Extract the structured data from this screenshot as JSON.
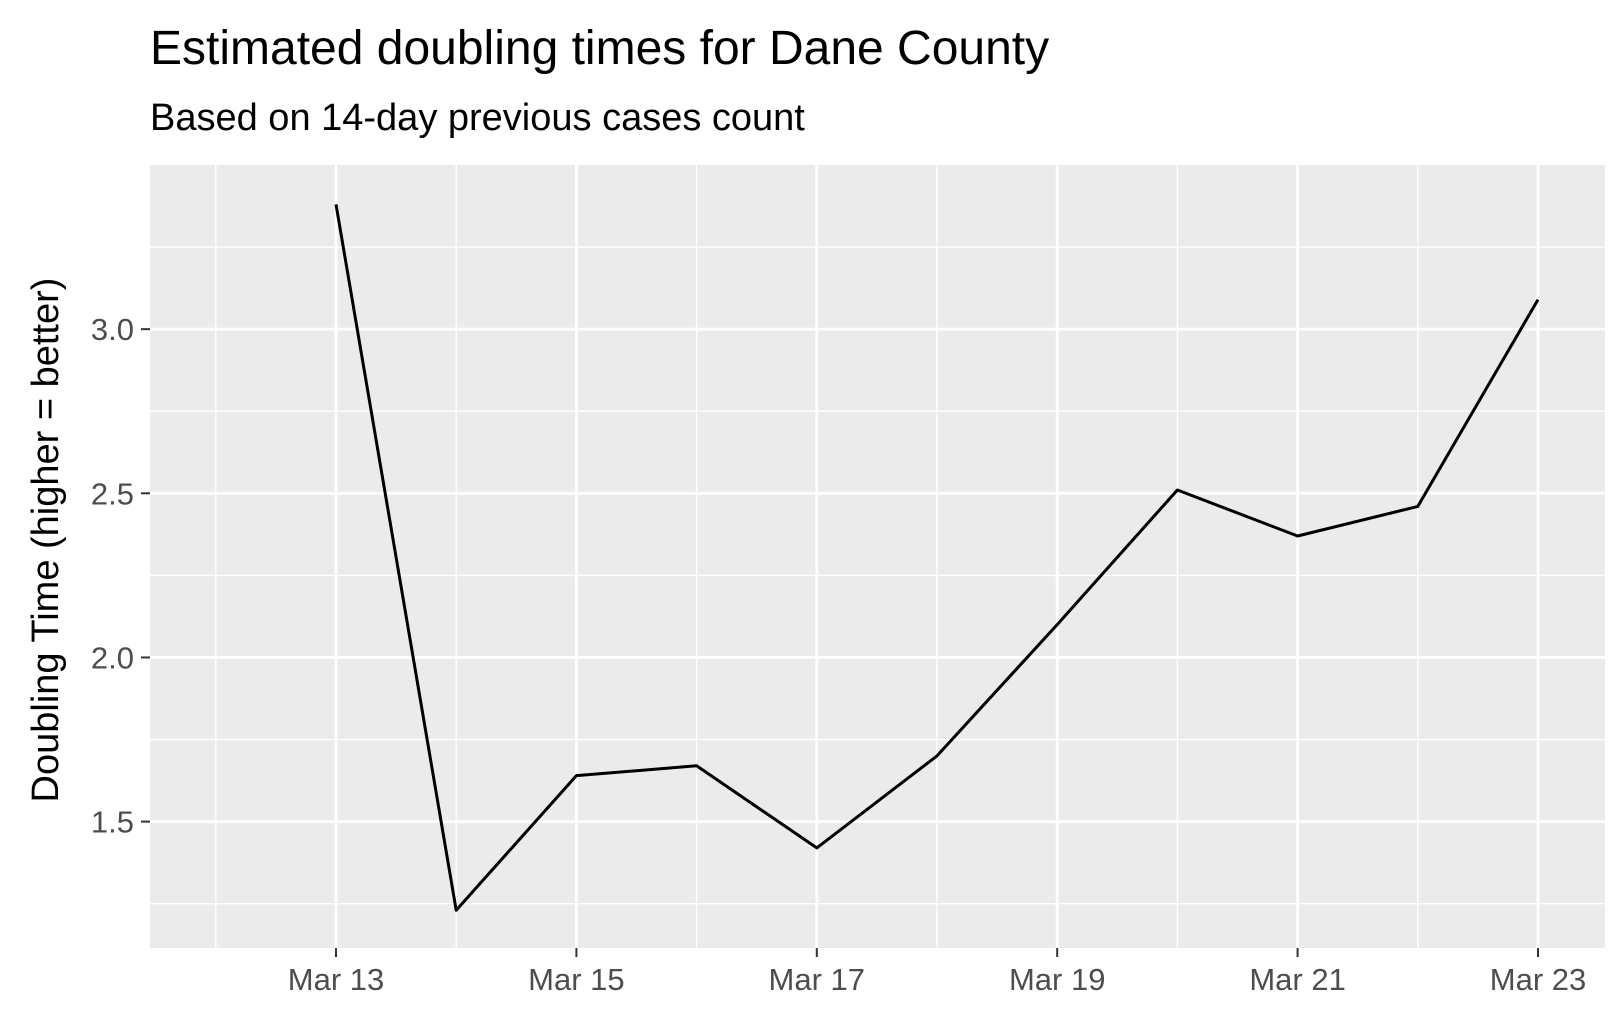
{
  "chart_data": {
    "type": "line",
    "title": "Estimated doubling times for Dane County",
    "subtitle": "Based on 14-day previous cases count",
    "xlabel": "",
    "ylabel": "Doubling Time (higher = better)",
    "x": [
      "Mar 13",
      "Mar 14",
      "Mar 15",
      "Mar 16",
      "Mar 17",
      "Mar 18",
      "Mar 19",
      "Mar 20",
      "Mar 21",
      "Mar 22",
      "Mar 23"
    ],
    "series": [
      {
        "values": [
          3.38,
          1.23,
          1.64,
          1.67,
          1.42,
          1.7,
          2.1,
          2.51,
          2.37,
          2.46,
          3.09
        ]
      }
    ],
    "x_ticks": [
      "Mar 13",
      "Mar 15",
      "Mar 17",
      "Mar 19",
      "Mar 21",
      "Mar 23"
    ],
    "y_ticks": [
      1.5,
      2.0,
      2.5,
      3.0
    ],
    "y_tick_labels": [
      "1.5",
      "2.0",
      "2.5",
      "3.0"
    ],
    "xlim": [
      "Mar 12.2",
      "Mar 23.6"
    ],
    "ylim": [
      1.115,
      3.5
    ],
    "grid": true,
    "legend": "none",
    "colors": {
      "panel_background": "#ebebeb",
      "grid_major": "#ffffff",
      "grid_minor": "#ffffff",
      "line": "#000000",
      "tick_text": "#4d4d4d",
      "tick_mark": "#333333"
    }
  }
}
